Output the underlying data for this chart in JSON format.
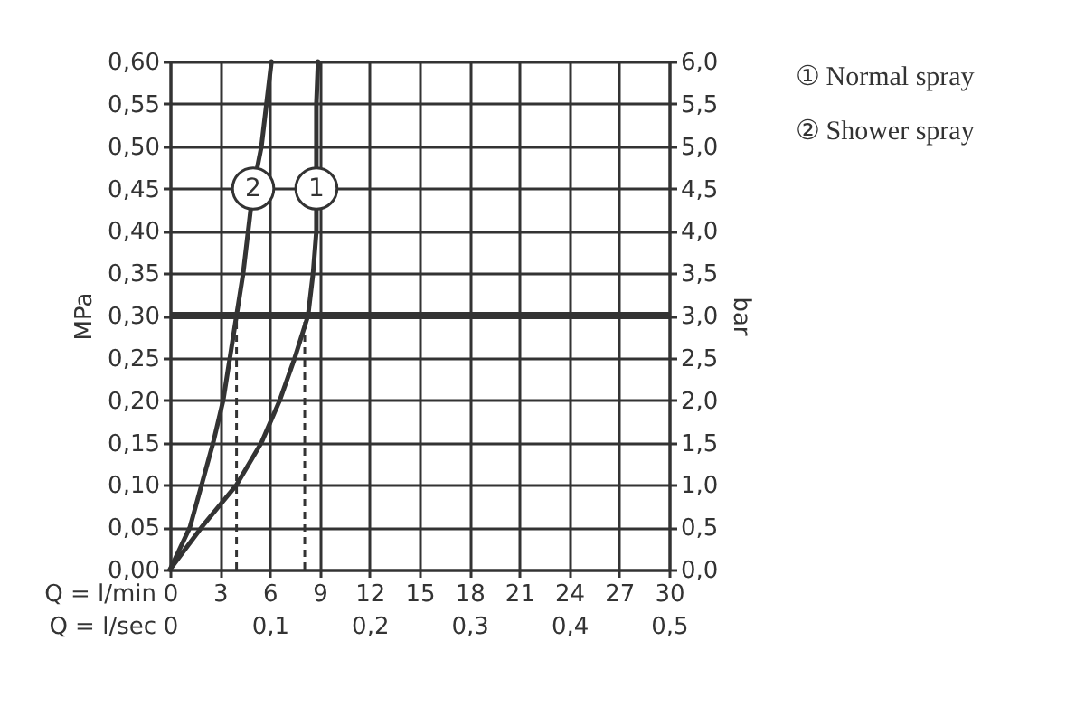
{
  "chart_data": {
    "type": "line",
    "xlabel": "Q = l/min",
    "x2label": "Q = l/sec",
    "ylabel": "MPa",
    "y2label": "bar",
    "series": [
      {
        "name": "① Normal spray",
        "color": "#333333",
        "x": [
          0,
          1.9,
          4.0,
          5.5,
          6.6,
          7.5,
          8.3,
          8.6,
          8.8,
          8.8,
          8.8,
          8.8,
          8.9
        ],
        "values": [
          0,
          0.05,
          0.1,
          0.15,
          0.2,
          0.25,
          0.3,
          0.35,
          0.4,
          0.45,
          0.5,
          0.55,
          0.6
        ]
      },
      {
        "name": "② Shower spray",
        "color": "#333333",
        "x": [
          0,
          1.2,
          1.9,
          2.6,
          3.2,
          3.6,
          4.0,
          4.4,
          4.7,
          5.0,
          5.5,
          5.8,
          6.1
        ],
        "values": [
          0,
          0.05,
          0.1,
          0.15,
          0.2,
          0.25,
          0.3,
          0.35,
          0.4,
          0.45,
          0.5,
          0.55,
          0.6
        ]
      }
    ],
    "annotations": [
      {
        "text": "1",
        "x": 8.8,
        "y": 0.45
      },
      {
        "text": "2",
        "x": 5.0,
        "y": 0.45
      }
    ],
    "ref_lines": [
      {
        "axis": "y",
        "value": 0.3,
        "color": "#333333"
      },
      {
        "axis": "x",
        "value": 4.0,
        "color": "#333333",
        "line_style": "dashed"
      },
      {
        "axis": "x",
        "value": 8.1,
        "color": "#333333",
        "line_style": "dashed"
      }
    ],
    "xlim": [
      0,
      30
    ],
    "xticks": [
      0,
      3,
      6,
      9,
      12,
      15,
      18,
      21,
      24,
      27,
      30
    ],
    "x2lim": [
      0,
      0.5
    ],
    "x2ticks": [
      0,
      {
        "value": 0.1,
        "label": "0,1"
      },
      {
        "value": 0.2,
        "label": "0,2"
      },
      {
        "value": 0.3,
        "label": "0,3"
      },
      {
        "value": 0.4,
        "label": "0,4"
      },
      {
        "value": 0.5,
        "label": "0,5"
      }
    ],
    "ylim": [
      0,
      0.6
    ],
    "yticks": [
      {
        "value": 0,
        "label": "0,00"
      },
      {
        "value": 0.05,
        "label": "0,05"
      },
      {
        "value": 0.1,
        "label": "0,10"
      },
      {
        "value": 0.15,
        "label": "0,15"
      },
      {
        "value": 0.2,
        "label": "0,20"
      },
      {
        "value": 0.25,
        "label": "0,25"
      },
      {
        "value": 0.3,
        "label": "0,30"
      },
      {
        "value": 0.35,
        "label": "0,35"
      },
      {
        "value": 0.4,
        "label": "0,40"
      },
      {
        "value": 0.45,
        "label": "0,45"
      },
      {
        "value": 0.5,
        "label": "0,50"
      },
      {
        "value": 0.55,
        "label": "0,55"
      },
      {
        "value": 0.6,
        "label": "0,60"
      }
    ],
    "y2lim": [
      0,
      6
    ],
    "y2ticks": [
      {
        "value": 0,
        "label": "0,0"
      },
      {
        "value": 0.5,
        "label": "0,5"
      },
      {
        "value": 1,
        "label": "1,0"
      },
      {
        "value": 1.5,
        "label": "1,5"
      },
      {
        "value": 2,
        "label": "2,0"
      },
      {
        "value": 2.5,
        "label": "2,5"
      },
      {
        "value": 3,
        "label": "3,0"
      },
      {
        "value": 3.5,
        "label": "3,5"
      },
      {
        "value": 4,
        "label": "4,0"
      },
      {
        "value": 4.5,
        "label": "4,5"
      },
      {
        "value": 5,
        "label": "5,0"
      },
      {
        "value": 5.5,
        "label": "5,5"
      },
      {
        "value": 6,
        "label": "6,0"
      }
    ],
    "grid": true,
    "legend": "top right",
    "marker": "none",
    "line_style": "solid"
  }
}
